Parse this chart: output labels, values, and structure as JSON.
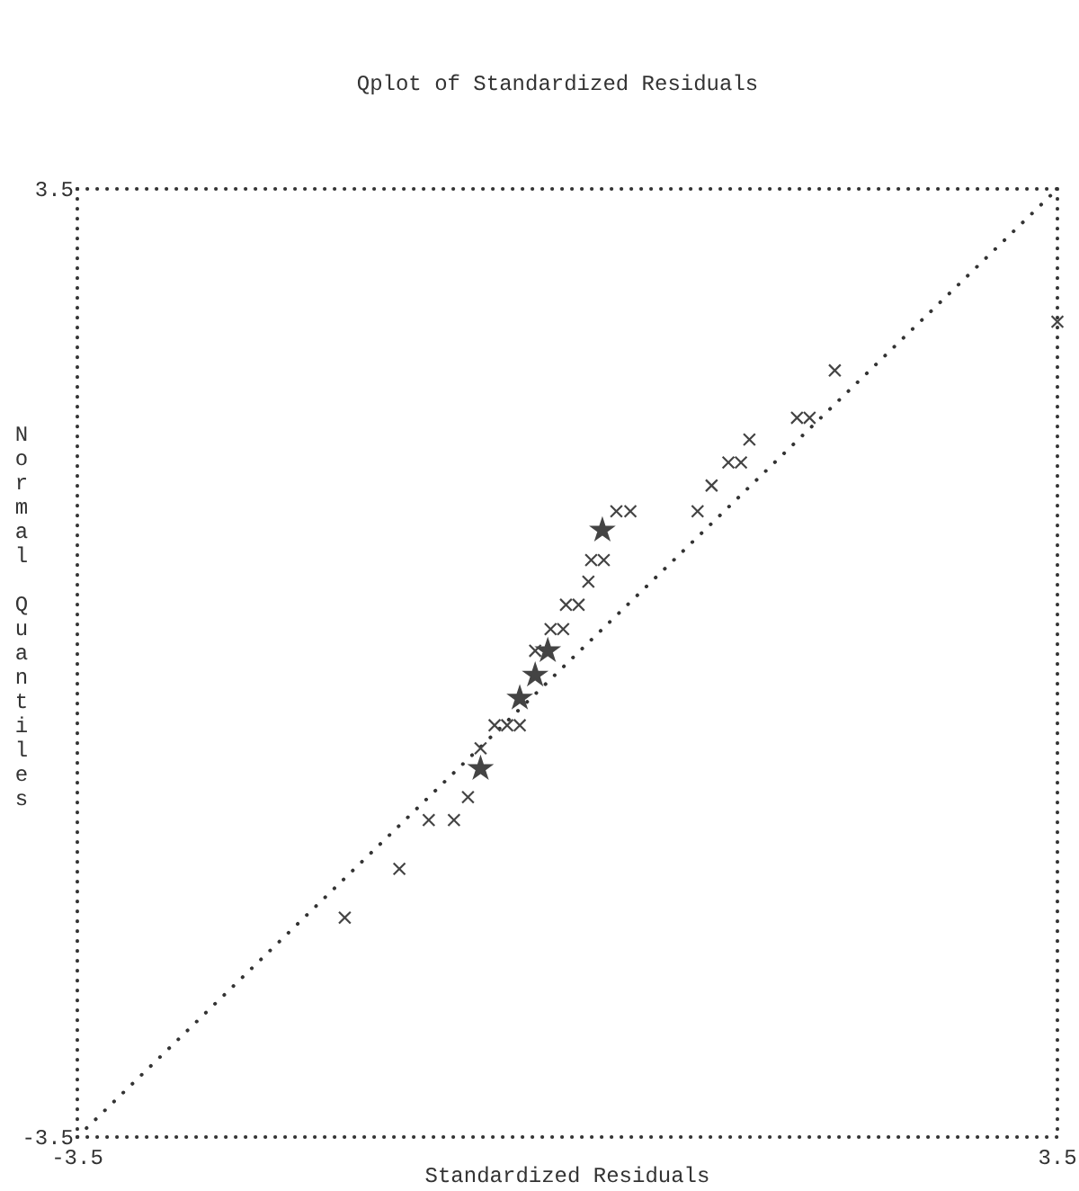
{
  "chart_data": {
    "type": "scatter",
    "title": "Qplot of Standardized Residuals",
    "xlabel": "Standardized Residuals",
    "ylabel": "Normal Quantiles",
    "xlim": [
      -3.5,
      3.5
    ],
    "ylim": [
      -3.5,
      3.5
    ],
    "xticks": [
      -3.5,
      3.5
    ],
    "yticks": [
      -3.5,
      3.5
    ],
    "grid": false,
    "series": [
      {
        "type": "line",
        "line_style": "dotted",
        "marker": "none",
        "color": "#333333",
        "x": [
          -3.5,
          3.5
        ],
        "values": [
          -3.5,
          3.5
        ]
      },
      {
        "marker": "cross",
        "color": "#444444",
        "x": [
          3.5,
          1.91,
          1.64,
          1.73,
          1.3,
          1.15,
          1.24,
          1.03,
          0.35,
          0.45,
          0.93,
          0.17,
          0.26,
          0.15,
          -0.01,
          0.08,
          -0.12,
          -0.03,
          -0.23,
          -0.52,
          -0.43,
          -0.34,
          -0.62,
          -0.71,
          -0.99,
          -0.81,
          -1.2,
          -1.59
        ],
        "values": [
          2.52,
          2.16,
          1.81,
          1.81,
          1.65,
          1.48,
          1.48,
          1.31,
          1.12,
          1.12,
          1.12,
          0.76,
          0.76,
          0.6,
          0.43,
          0.43,
          0.25,
          0.25,
          0.09,
          -0.46,
          -0.46,
          -0.46,
          -0.63,
          -0.99,
          -1.16,
          -1.16,
          -1.52,
          -1.88
        ]
      },
      {
        "marker": "star",
        "color": "#444444",
        "x": [
          0.25,
          -0.14,
          -0.23,
          -0.34,
          -0.62
        ],
        "values": [
          0.98,
          0.09,
          -0.09,
          -0.26,
          -0.78
        ]
      }
    ]
  }
}
